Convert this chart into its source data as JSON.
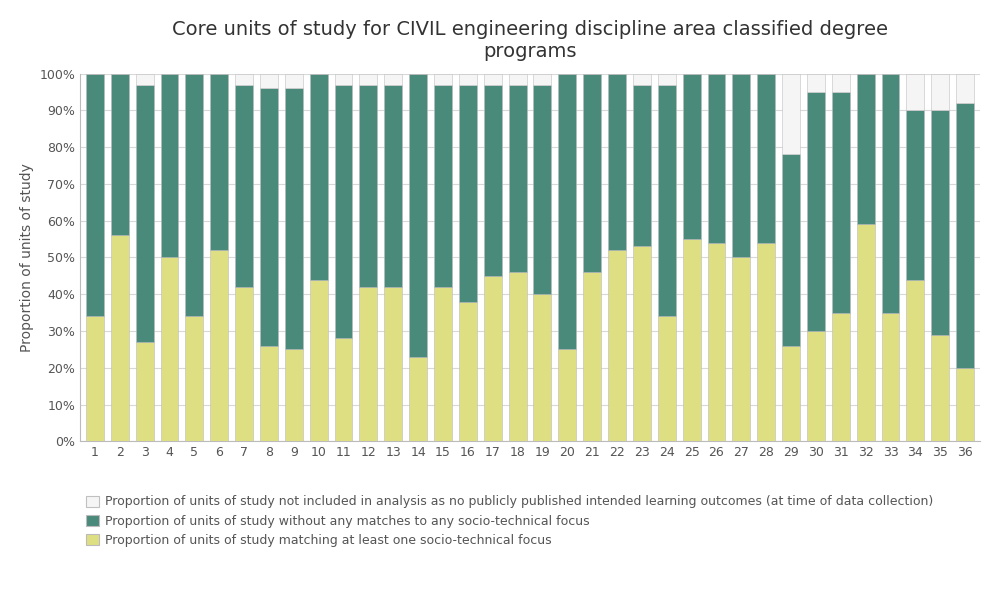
{
  "title": "Core units of study for CIVIL engineering discipline area classified degree\nprograms",
  "ylabel": "Proportion of units of study",
  "categories": [
    1,
    2,
    3,
    4,
    5,
    6,
    7,
    8,
    9,
    10,
    11,
    12,
    13,
    14,
    15,
    16,
    17,
    18,
    19,
    20,
    21,
    22,
    23,
    24,
    25,
    26,
    27,
    28,
    29,
    30,
    31,
    32,
    33,
    34,
    35,
    36
  ],
  "yellow": [
    0.34,
    0.56,
    0.27,
    0.5,
    0.34,
    0.52,
    0.42,
    0.26,
    0.25,
    0.44,
    0.28,
    0.42,
    0.42,
    0.23,
    0.42,
    0.38,
    0.45,
    0.46,
    0.4,
    0.25,
    0.46,
    0.52,
    0.53,
    0.34,
    0.55,
    0.54,
    0.5,
    0.54,
    0.26,
    0.3,
    0.35,
    0.59,
    0.35,
    0.44,
    0.29,
    0.2
  ],
  "teal": [
    0.66,
    0.44,
    0.7,
    0.5,
    0.66,
    0.48,
    0.55,
    0.7,
    0.71,
    0.56,
    0.69,
    0.55,
    0.55,
    0.77,
    0.55,
    0.59,
    0.52,
    0.51,
    0.57,
    0.75,
    0.54,
    0.48,
    0.44,
    0.63,
    0.45,
    0.46,
    0.5,
    0.46,
    0.52,
    0.65,
    0.6,
    0.41,
    0.65,
    0.46,
    0.61,
    0.72
  ],
  "white": [
    0.0,
    0.0,
    0.03,
    0.0,
    0.0,
    0.0,
    0.03,
    0.04,
    0.04,
    0.0,
    0.03,
    0.03,
    0.03,
    0.0,
    0.03,
    0.03,
    0.03,
    0.03,
    0.03,
    0.0,
    0.0,
    0.0,
    0.03,
    0.03,
    0.0,
    0.0,
    0.0,
    0.0,
    0.22,
    0.05,
    0.05,
    0.0,
    0.0,
    0.1,
    0.1,
    0.08
  ],
  "color_yellow": "#dede82",
  "color_teal": "#4a8a7a",
  "color_white": "#f5f5f5",
  "color_white_edge": "#c0c0c0",
  "legend_labels": [
    "Proportion of units of study not included in analysis as no publicly published intended learning outcomes (at time of data collection)",
    "Proportion of units of study without any matches to any socio-technical focus",
    "Proportion of units of study matching at least one socio-technical focus"
  ],
  "ylim": [
    0,
    1.0
  ],
  "yticks": [
    0.0,
    0.1,
    0.2,
    0.3,
    0.4,
    0.5,
    0.6,
    0.7,
    0.8,
    0.9,
    1.0
  ],
  "ytick_labels": [
    "0%",
    "10%",
    "20%",
    "30%",
    "40%",
    "50%",
    "60%",
    "70%",
    "80%",
    "90%",
    "100%"
  ],
  "title_fontsize": 14,
  "axis_fontsize": 10,
  "tick_fontsize": 9,
  "legend_fontsize": 9,
  "bar_width": 0.72,
  "bar_edge_color": "#bbbbbb",
  "bar_edge_width": 0.4,
  "grid_color": "#d8d8d8",
  "grid_linewidth": 0.8,
  "spine_color": "#bbbbbb"
}
